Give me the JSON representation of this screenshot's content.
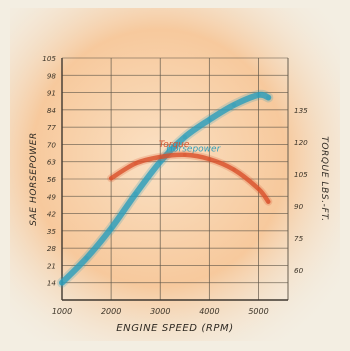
{
  "chart_data": {
    "type": "line",
    "xlabel": "ENGINE SPEED (RPM)",
    "ylabel_left": "SAE HORSEPOWER",
    "ylabel_right": "TORQUE LBS.-FT.",
    "x_ticks": [
      "1000",
      "2000",
      "3000",
      "4000",
      "5000"
    ],
    "y_left_ticks": [
      "14",
      "21",
      "28",
      "35",
      "42",
      "49",
      "56",
      "63",
      "70",
      "77",
      "84",
      "91",
      "98",
      "105"
    ],
    "y_left_tick_labels_visible": [
      "14",
      "21",
      "28",
      "35",
      "42",
      "49",
      "56",
      "63",
      "70",
      "77",
      "84",
      "91",
      "98",
      "105"
    ],
    "y_right_ticks": [
      "60",
      "75",
      "90",
      "105",
      "120",
      "135"
    ],
    "y_right_tick_values": [
      60,
      75,
      90,
      105,
      120,
      135
    ],
    "xlim": [
      1000,
      5600
    ],
    "ylim_left": [
      7,
      105
    ],
    "grid": true,
    "series": [
      {
        "name": "Horsepower",
        "axis": "left",
        "color": "#2a9dbb",
        "x": [
          1000,
          1500,
          2000,
          2500,
          3000,
          3500,
          4000,
          4500,
          5000,
          5200
        ],
        "y": [
          14,
          24,
          36,
          50,
          63,
          73,
          80,
          86,
          90,
          89
        ]
      },
      {
        "name": "Torque",
        "axis": "right",
        "color": "#d9502b",
        "x": [
          2000,
          2500,
          3000,
          3500,
          4000,
          4500,
          5000,
          5200
        ],
        "y": [
          103,
          110,
          113,
          114,
          112,
          107,
          98,
          92
        ]
      }
    ]
  }
}
